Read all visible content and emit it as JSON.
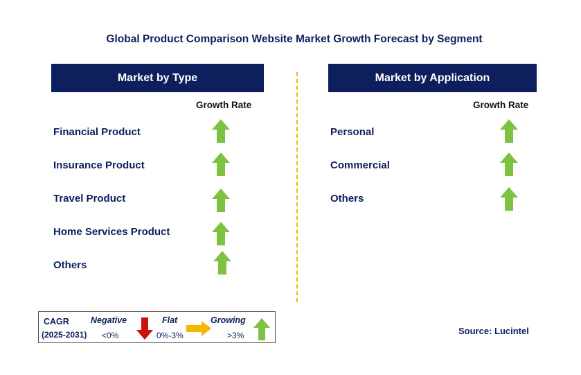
{
  "title": "Global Product Comparison Website Market Growth Forecast by Segment",
  "panels": {
    "type": {
      "header": "Market by Type",
      "column_header": "Growth Rate",
      "rows": [
        {
          "label": "Financial Product",
          "trend": "growing"
        },
        {
          "label": "Insurance Product",
          "trend": "growing"
        },
        {
          "label": "Travel Product",
          "trend": "growing"
        },
        {
          "label": "Home Services Product",
          "trend": "growing"
        },
        {
          "label": "Others",
          "trend": "growing"
        }
      ]
    },
    "application": {
      "header": "Market by Application",
      "column_header": "Growth Rate",
      "rows": [
        {
          "label": "Personal",
          "trend": "growing"
        },
        {
          "label": "Commercial",
          "trend": "growing"
        },
        {
          "label": "Others",
          "trend": "growing"
        }
      ]
    }
  },
  "legend": {
    "cagr_label": "CAGR",
    "period": "(2025-2031)",
    "negative": {
      "label": "Negative",
      "range": "<0%",
      "icon": "red-down-arrow-icon"
    },
    "flat": {
      "label": "Flat",
      "range": "0%-3%",
      "icon": "orange-right-arrow-icon"
    },
    "growing": {
      "label": "Growing",
      "range": ">3%",
      "icon": "green-up-arrow-icon"
    }
  },
  "source": "Source: Lucintel",
  "colors": {
    "navy": "#0d1f5c",
    "growing_green": "#7dc242",
    "negative_red": "#cc1010",
    "flat_orange": "#f5b800",
    "divider": "#f5b800"
  }
}
